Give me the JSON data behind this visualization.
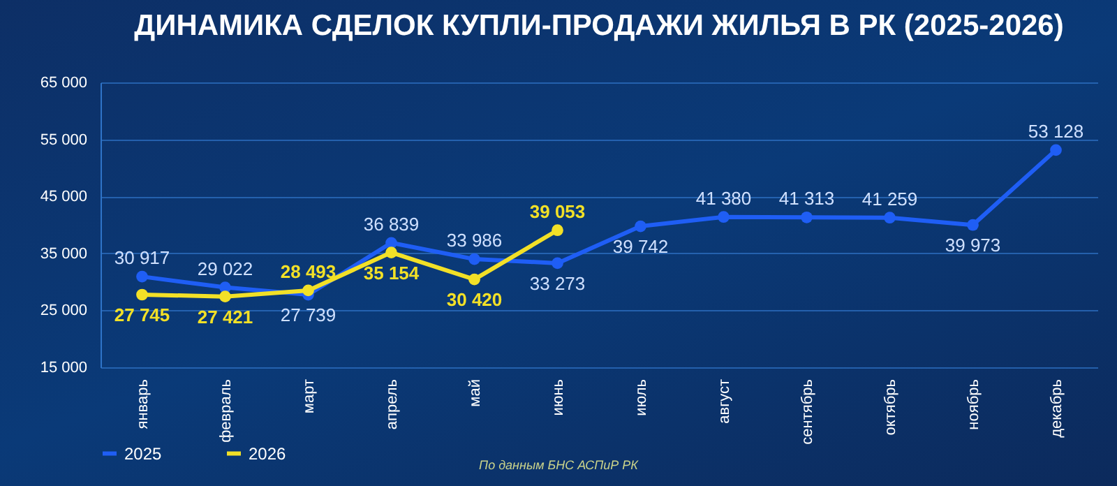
{
  "chart_data": {
    "type": "line",
    "title": "ДИНАМИКА СДЕЛОК КУПЛИ-ПРОДАЖИ ЖИЛЬЯ В РК (2025-2026)",
    "categories": [
      "январь",
      "февраль",
      "март",
      "апрель",
      "май",
      "июнь",
      "июль",
      "август",
      "сентябрь",
      "октябрь",
      "ноябрь",
      "декабрь"
    ],
    "series": [
      {
        "name": "2025",
        "color": "#1f5ef5",
        "values": [
          30917,
          29022,
          27739,
          36839,
          33986,
          33273,
          39742,
          41380,
          41313,
          41259,
          39973,
          53128
        ],
        "value_labels": [
          "30 917",
          "29 022",
          "27 739",
          "36 839",
          "33 986",
          "33 273",
          "39 742",
          "41 380",
          "41 313",
          "41 259",
          "39 973",
          "53 128"
        ]
      },
      {
        "name": "2026",
        "color": "#f2e027",
        "values": [
          27745,
          27421,
          28493,
          35154,
          30420,
          39053,
          null,
          null,
          null,
          null,
          null,
          null
        ],
        "value_labels": [
          "27 745",
          "27 421",
          "28 493",
          "35 154",
          "30 420",
          "39 053",
          null,
          null,
          null,
          null,
          null,
          null
        ]
      }
    ],
    "ylim": [
      15000,
      65000
    ],
    "yticks": [
      {
        "value": 15000,
        "label": "15 000"
      },
      {
        "value": 25000,
        "label": "25 000"
      },
      {
        "value": 35000,
        "label": "35 000"
      },
      {
        "value": 45000,
        "label": "45 000"
      },
      {
        "value": 55000,
        "label": "55 000"
      },
      {
        "value": 65000,
        "label": "65 000"
      }
    ],
    "grid": "y",
    "legend": "bottom",
    "marker": "circle",
    "line_style": "solid",
    "annotations": [
      "По данным БНС АСПиР РК"
    ]
  }
}
